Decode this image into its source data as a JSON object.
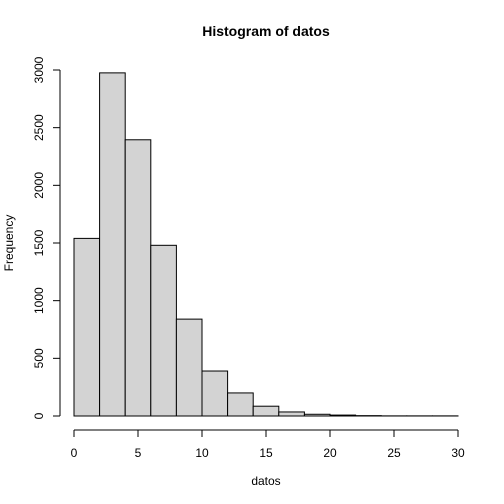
{
  "chart_data": {
    "type": "bar",
    "title": "Histogram of datos",
    "xlabel": "datos",
    "ylabel": "Frequency",
    "bins": [
      {
        "start": 0,
        "end": 2,
        "value": 1540
      },
      {
        "start": 2,
        "end": 4,
        "value": 2975
      },
      {
        "start": 4,
        "end": 6,
        "value": 2395
      },
      {
        "start": 6,
        "end": 8,
        "value": 1480
      },
      {
        "start": 8,
        "end": 10,
        "value": 840
      },
      {
        "start": 10,
        "end": 12,
        "value": 390
      },
      {
        "start": 12,
        "end": 14,
        "value": 200
      },
      {
        "start": 14,
        "end": 16,
        "value": 85
      },
      {
        "start": 16,
        "end": 18,
        "value": 35
      },
      {
        "start": 18,
        "end": 20,
        "value": 15
      },
      {
        "start": 20,
        "end": 22,
        "value": 8
      },
      {
        "start": 22,
        "end": 24,
        "value": 3
      },
      {
        "start": 24,
        "end": 26,
        "value": 1
      },
      {
        "start": 26,
        "end": 28,
        "value": 1
      },
      {
        "start": 28,
        "end": 30,
        "value": 1
      }
    ],
    "xlim": [
      0,
      30
    ],
    "ylim": [
      0,
      3000
    ],
    "xticks": [
      "0",
      "5",
      "10",
      "15",
      "20",
      "25",
      "30"
    ],
    "yticks": [
      "0",
      "500",
      "1000",
      "1500",
      "2000",
      "2500",
      "3000"
    ],
    "grid": false,
    "colors": {
      "bar_fill": "#d3d3d3",
      "bar_stroke": "#000000",
      "axis": "#000000",
      "text": "#000000"
    }
  }
}
